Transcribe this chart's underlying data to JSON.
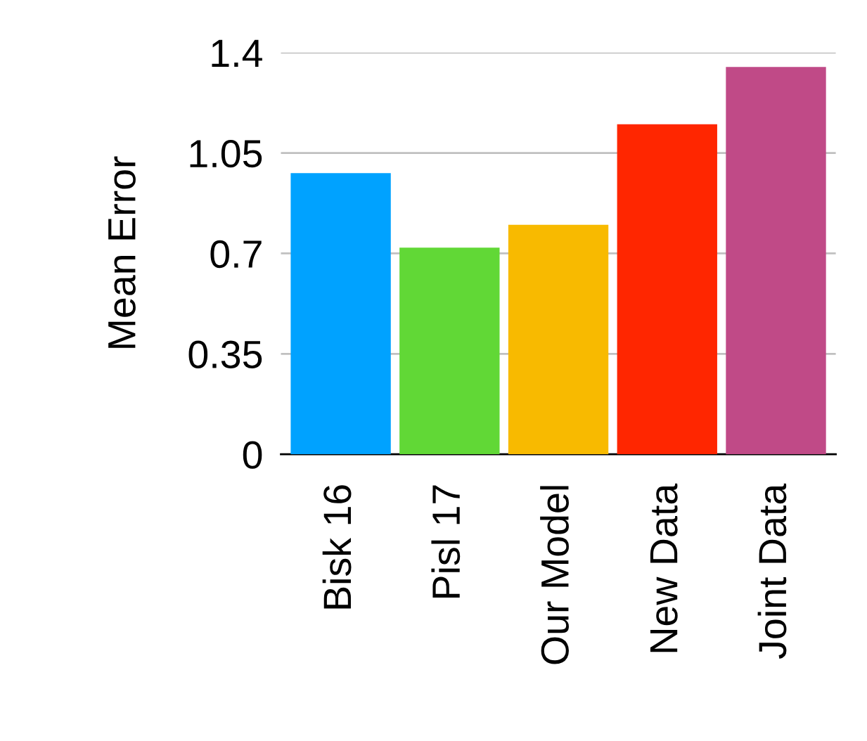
{
  "chart_data": {
    "type": "bar",
    "ylabel": "Mean Error",
    "categories": [
      "Bisk 16",
      "Pisl 17",
      "Our Model",
      "New Data",
      "Joint Data"
    ],
    "values": [
      0.98,
      0.72,
      0.8,
      1.15,
      1.35
    ],
    "colors": [
      "#00a2ff",
      "#61d836",
      "#f8ba00",
      "#ff2600",
      "#c04a87"
    ],
    "ylim": [
      0,
      1.4
    ],
    "yticks": [
      0,
      0.35,
      0.7,
      1.05,
      1.4
    ],
    "grid": "y",
    "legend": false
  }
}
